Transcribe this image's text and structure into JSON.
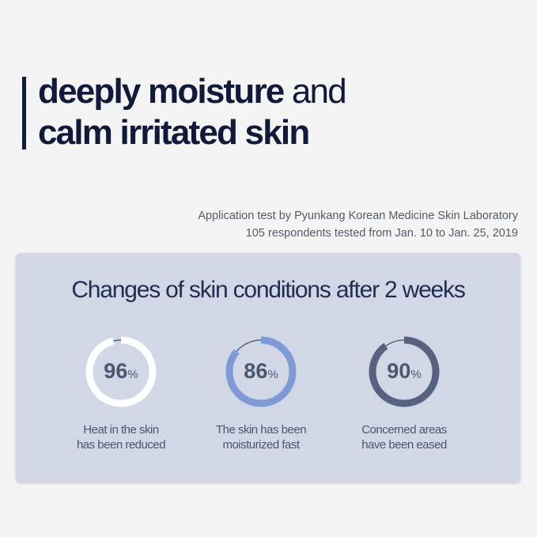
{
  "headline": {
    "line1_bold": "deeply moisture",
    "line1_light": "and",
    "line2": "calm irritated skin"
  },
  "source": {
    "line1": "Application test by Pyunkang Korean Medicine Skin Laboratory",
    "line2": "105 respondents tested from Jan. 10 to Jan. 25, 2019"
  },
  "panel": {
    "title": "Changes of skin conditions after 2 weeks",
    "stats": [
      {
        "value": 96,
        "value_text": "96",
        "unit": "%",
        "caption1": "Heat in the skin",
        "caption2": "has been reduced",
        "color": "#ffffff"
      },
      {
        "value": 86,
        "value_text": "86",
        "unit": "%",
        "caption1": "The skin has been",
        "caption2": "moisturized fast",
        "color": "#7f9ad6"
      },
      {
        "value": 90,
        "value_text": "90",
        "unit": "%",
        "caption1": "Concerned areas",
        "caption2": "have been eased",
        "color": "#56627f"
      }
    ]
  }
}
